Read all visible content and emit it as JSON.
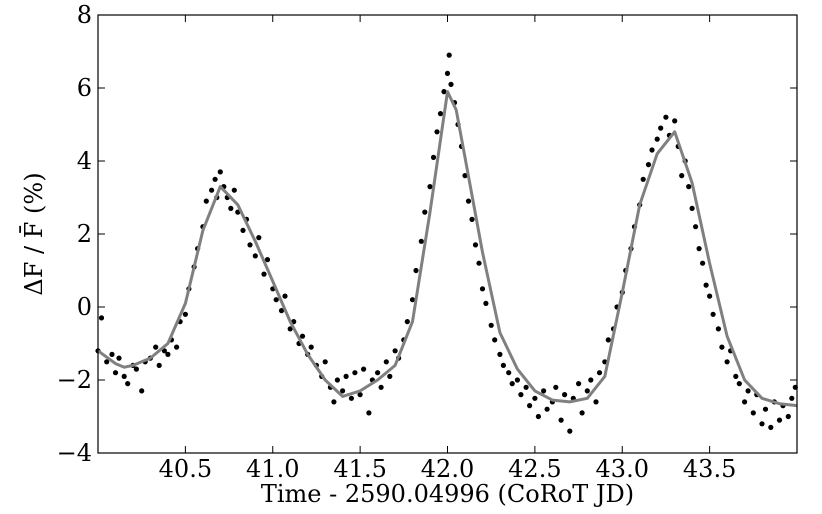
{
  "chart_data": {
    "type": "scatter",
    "xlabel": "Time - 2590.04996 (CoRoT JD)",
    "ylabel": "ΔF / F̄ (%)",
    "xlim": [
      40.0,
      44.0
    ],
    "ylim": [
      -4,
      8
    ],
    "x_ticks": [
      "40.5",
      "41.0",
      "41.5",
      "42.0",
      "42.5",
      "43.0",
      "43.5"
    ],
    "x_tick_values": [
      40.5,
      41.0,
      41.5,
      42.0,
      42.5,
      43.0,
      43.5
    ],
    "y_ticks": [
      "−4",
      "−2",
      "0",
      "2",
      "4",
      "6",
      "8"
    ],
    "y_tick_values": [
      -4,
      -2,
      0,
      2,
      4,
      6,
      8
    ],
    "grid": false,
    "colors": {
      "points": "#000000",
      "fit": "#808080"
    },
    "series": [
      {
        "kind": "points",
        "points": [
          [
            40.0,
            -1.2
          ],
          [
            40.02,
            -0.3
          ],
          [
            40.05,
            -1.5
          ],
          [
            40.08,
            -1.3
          ],
          [
            40.1,
            -1.8
          ],
          [
            40.12,
            -1.4
          ],
          [
            40.15,
            -1.9
          ],
          [
            40.17,
            -2.1
          ],
          [
            40.2,
            -1.6
          ],
          [
            40.22,
            -1.7
          ],
          [
            40.25,
            -2.3
          ],
          [
            40.27,
            -1.5
          ],
          [
            40.3,
            -1.4
          ],
          [
            40.33,
            -1.1
          ],
          [
            40.35,
            -1.6
          ],
          [
            40.38,
            -1.2
          ],
          [
            40.4,
            -1.3
          ],
          [
            40.42,
            -0.9
          ],
          [
            40.45,
            -1.1
          ],
          [
            40.47,
            -0.4
          ],
          [
            40.5,
            -0.2
          ],
          [
            40.52,
            0.5
          ],
          [
            40.55,
            1.1
          ],
          [
            40.57,
            1.6
          ],
          [
            40.6,
            2.2
          ],
          [
            40.62,
            2.9
          ],
          [
            40.65,
            3.2
          ],
          [
            40.67,
            3.5
          ],
          [
            40.68,
            3.0
          ],
          [
            40.7,
            3.7
          ],
          [
            40.72,
            3.3
          ],
          [
            40.74,
            3.0
          ],
          [
            40.76,
            2.7
          ],
          [
            40.78,
            3.2
          ],
          [
            40.8,
            2.6
          ],
          [
            40.83,
            2.1
          ],
          [
            40.85,
            2.4
          ],
          [
            40.87,
            1.7
          ],
          [
            40.9,
            1.4
          ],
          [
            40.92,
            1.9
          ],
          [
            40.95,
            0.9
          ],
          [
            40.97,
            1.3
          ],
          [
            41.0,
            0.5
          ],
          [
            41.02,
            0.2
          ],
          [
            41.05,
            -0.1
          ],
          [
            41.07,
            0.3
          ],
          [
            41.1,
            -0.6
          ],
          [
            41.12,
            -0.4
          ],
          [
            41.15,
            -1.0
          ],
          [
            41.17,
            -0.8
          ],
          [
            41.2,
            -1.3
          ],
          [
            41.22,
            -1.1
          ],
          [
            41.25,
            -1.6
          ],
          [
            41.28,
            -1.9
          ],
          [
            41.3,
            -1.5
          ],
          [
            41.33,
            -2.2
          ],
          [
            41.35,
            -2.6
          ],
          [
            41.37,
            -2.0
          ],
          [
            41.4,
            -2.3
          ],
          [
            41.42,
            -1.9
          ],
          [
            41.45,
            -2.5
          ],
          [
            41.47,
            -1.8
          ],
          [
            41.5,
            -2.4
          ],
          [
            41.52,
            -1.7
          ],
          [
            41.55,
            -2.9
          ],
          [
            41.57,
            -2.0
          ],
          [
            41.6,
            -1.8
          ],
          [
            41.62,
            -2.2
          ],
          [
            41.65,
            -1.5
          ],
          [
            41.67,
            -1.9
          ],
          [
            41.7,
            -1.2
          ],
          [
            41.72,
            -1.4
          ],
          [
            41.75,
            -0.9
          ],
          [
            41.77,
            -0.4
          ],
          [
            41.8,
            0.2
          ],
          [
            41.82,
            1.0
          ],
          [
            41.85,
            1.8
          ],
          [
            41.87,
            2.6
          ],
          [
            41.9,
            3.3
          ],
          [
            41.92,
            4.1
          ],
          [
            41.94,
            4.8
          ],
          [
            41.96,
            5.3
          ],
          [
            41.98,
            5.9
          ],
          [
            42.0,
            6.4
          ],
          [
            42.01,
            6.9
          ],
          [
            42.02,
            6.1
          ],
          [
            42.04,
            5.6
          ],
          [
            42.06,
            5.0
          ],
          [
            42.08,
            4.4
          ],
          [
            42.1,
            3.6
          ],
          [
            42.12,
            2.9
          ],
          [
            42.14,
            2.4
          ],
          [
            42.16,
            1.7
          ],
          [
            42.18,
            1.2
          ],
          [
            42.2,
            0.5
          ],
          [
            42.22,
            0.1
          ],
          [
            42.25,
            -0.5
          ],
          [
            42.27,
            -0.9
          ],
          [
            42.3,
            -1.3
          ],
          [
            42.32,
            -1.6
          ],
          [
            42.35,
            -1.8
          ],
          [
            42.37,
            -2.1
          ],
          [
            42.4,
            -2.0
          ],
          [
            42.42,
            -2.4
          ],
          [
            42.45,
            -2.2
          ],
          [
            42.47,
            -2.7
          ],
          [
            42.5,
            -2.5
          ],
          [
            42.52,
            -3.0
          ],
          [
            42.55,
            -2.3
          ],
          [
            42.57,
            -2.8
          ],
          [
            42.6,
            -2.6
          ],
          [
            42.62,
            -2.2
          ],
          [
            42.65,
            -3.1
          ],
          [
            42.67,
            -2.4
          ],
          [
            42.7,
            -3.4
          ],
          [
            42.72,
            -2.5
          ],
          [
            42.75,
            -2.1
          ],
          [
            42.77,
            -2.9
          ],
          [
            42.8,
            -2.3
          ],
          [
            42.82,
            -2.0
          ],
          [
            42.85,
            -2.6
          ],
          [
            42.87,
            -1.8
          ],
          [
            42.9,
            -1.5
          ],
          [
            42.92,
            -0.9
          ],
          [
            42.95,
            -0.6
          ],
          [
            42.97,
            0.0
          ],
          [
            43.0,
            0.4
          ],
          [
            43.02,
            1.0
          ],
          [
            43.05,
            1.6
          ],
          [
            43.07,
            2.2
          ],
          [
            43.1,
            2.8
          ],
          [
            43.12,
            3.5
          ],
          [
            43.15,
            3.9
          ],
          [
            43.17,
            4.3
          ],
          [
            43.2,
            4.6
          ],
          [
            43.22,
            4.9
          ],
          [
            43.25,
            5.2
          ],
          [
            43.27,
            4.7
          ],
          [
            43.3,
            5.1
          ],
          [
            43.32,
            4.4
          ],
          [
            43.34,
            3.6
          ],
          [
            43.36,
            4.0
          ],
          [
            43.38,
            3.3
          ],
          [
            43.4,
            2.7
          ],
          [
            43.42,
            2.2
          ],
          [
            43.44,
            1.6
          ],
          [
            43.46,
            1.2
          ],
          [
            43.48,
            0.6
          ],
          [
            43.5,
            0.3
          ],
          [
            43.52,
            -0.2
          ],
          [
            43.55,
            -0.6
          ],
          [
            43.57,
            -1.1
          ],
          [
            43.6,
            -1.5
          ],
          [
            43.62,
            -1.2
          ],
          [
            43.65,
            -1.9
          ],
          [
            43.67,
            -2.1
          ],
          [
            43.7,
            -2.6
          ],
          [
            43.72,
            -2.3
          ],
          [
            43.75,
            -2.9
          ],
          [
            43.77,
            -2.4
          ],
          [
            43.8,
            -3.2
          ],
          [
            43.82,
            -2.8
          ],
          [
            43.85,
            -3.3
          ],
          [
            43.87,
            -2.6
          ],
          [
            43.9,
            -3.1
          ],
          [
            43.92,
            -2.7
          ],
          [
            43.95,
            -3.0
          ],
          [
            43.97,
            -2.5
          ],
          [
            43.99,
            -2.2
          ]
        ]
      },
      {
        "kind": "fit",
        "points": [
          [
            40.0,
            -1.2
          ],
          [
            40.1,
            -1.55
          ],
          [
            40.15,
            -1.65
          ],
          [
            40.2,
            -1.6
          ],
          [
            40.3,
            -1.4
          ],
          [
            40.4,
            -1.0
          ],
          [
            40.5,
            0.1
          ],
          [
            40.6,
            2.1
          ],
          [
            40.7,
            3.3
          ],
          [
            40.8,
            2.8
          ],
          [
            40.9,
            1.8
          ],
          [
            41.0,
            0.7
          ],
          [
            41.1,
            -0.4
          ],
          [
            41.2,
            -1.3
          ],
          [
            41.3,
            -2.0
          ],
          [
            41.4,
            -2.45
          ],
          [
            41.5,
            -2.3
          ],
          [
            41.6,
            -2.0
          ],
          [
            41.7,
            -1.6
          ],
          [
            41.8,
            -0.4
          ],
          [
            41.9,
            2.6
          ],
          [
            42.0,
            5.9
          ],
          [
            42.05,
            5.4
          ],
          [
            42.1,
            4.1
          ],
          [
            42.2,
            1.5
          ],
          [
            42.3,
            -0.7
          ],
          [
            42.4,
            -1.7
          ],
          [
            42.5,
            -2.3
          ],
          [
            42.6,
            -2.55
          ],
          [
            42.7,
            -2.6
          ],
          [
            42.8,
            -2.5
          ],
          [
            42.9,
            -1.9
          ],
          [
            43.0,
            0.4
          ],
          [
            43.1,
            2.8
          ],
          [
            43.2,
            4.2
          ],
          [
            43.3,
            4.8
          ],
          [
            43.4,
            3.4
          ],
          [
            43.5,
            1.2
          ],
          [
            43.6,
            -0.8
          ],
          [
            43.7,
            -2.0
          ],
          [
            43.8,
            -2.5
          ],
          [
            43.9,
            -2.65
          ],
          [
            44.0,
            -2.7
          ]
        ]
      }
    ]
  }
}
